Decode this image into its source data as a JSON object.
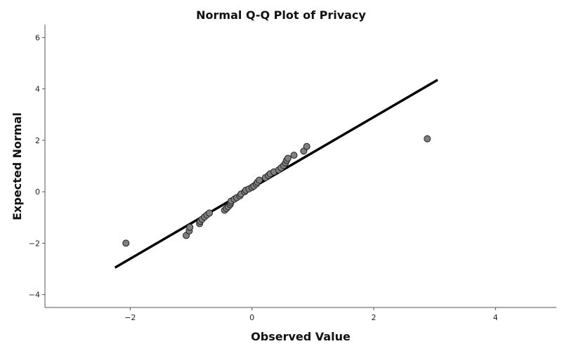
{
  "chart_data": {
    "type": "scatter",
    "title": "Normal Q-Q Plot of Privacy",
    "xlabel": "Observed Value",
    "ylabel": "Expected Normal",
    "xlim": [
      -3.4,
      5.0
    ],
    "ylim": [
      -4.5,
      6.5
    ],
    "x_ticks": [
      -2,
      0,
      2,
      4
    ],
    "y_ticks": [
      -4,
      -2,
      0,
      2,
      4,
      6
    ],
    "grid": false,
    "reference_line": {
      "x": [
        -2.25,
        3.05
      ],
      "y": [
        -2.95,
        4.35
      ]
    },
    "points": [
      {
        "x": -2.07,
        "y": -2.0
      },
      {
        "x": -1.08,
        "y": -1.7
      },
      {
        "x": -1.03,
        "y": -1.52
      },
      {
        "x": -1.02,
        "y": -1.38
      },
      {
        "x": -0.86,
        "y": -1.24
      },
      {
        "x": -0.85,
        "y": -1.15
      },
      {
        "x": -0.82,
        "y": -1.07
      },
      {
        "x": -0.78,
        "y": -0.98
      },
      {
        "x": -0.74,
        "y": -0.9
      },
      {
        "x": -0.7,
        "y": -0.83
      },
      {
        "x": -0.45,
        "y": -0.72
      },
      {
        "x": -0.42,
        "y": -0.65
      },
      {
        "x": -0.39,
        "y": -0.58
      },
      {
        "x": -0.36,
        "y": -0.5
      },
      {
        "x": -0.35,
        "y": -0.43
      },
      {
        "x": -0.34,
        "y": -0.36
      },
      {
        "x": -0.29,
        "y": -0.29
      },
      {
        "x": -0.25,
        "y": -0.23
      },
      {
        "x": -0.2,
        "y": -0.16
      },
      {
        "x": -0.18,
        "y": -0.09
      },
      {
        "x": -0.12,
        "y": 0.0
      },
      {
        "x": -0.1,
        "y": 0.06
      },
      {
        "x": -0.05,
        "y": 0.11
      },
      {
        "x": 0.0,
        "y": 0.17
      },
      {
        "x": 0.03,
        "y": 0.22
      },
      {
        "x": 0.07,
        "y": 0.3
      },
      {
        "x": 0.09,
        "y": 0.37
      },
      {
        "x": 0.12,
        "y": 0.45
      },
      {
        "x": 0.22,
        "y": 0.55
      },
      {
        "x": 0.27,
        "y": 0.63
      },
      {
        "x": 0.3,
        "y": 0.7
      },
      {
        "x": 0.36,
        "y": 0.77
      },
      {
        "x": 0.44,
        "y": 0.85
      },
      {
        "x": 0.48,
        "y": 0.93
      },
      {
        "x": 0.52,
        "y": 1.02
      },
      {
        "x": 0.55,
        "y": 1.12
      },
      {
        "x": 0.57,
        "y": 1.22
      },
      {
        "x": 0.59,
        "y": 1.3
      },
      {
        "x": 0.69,
        "y": 1.42
      },
      {
        "x": 0.85,
        "y": 1.58
      },
      {
        "x": 0.9,
        "y": 1.76
      },
      {
        "x": 2.88,
        "y": 2.06
      }
    ]
  }
}
